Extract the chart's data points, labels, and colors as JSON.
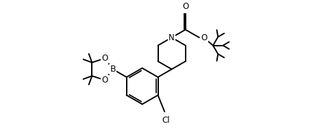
{
  "background_color": "#ffffff",
  "line_color": "#000000",
  "line_width": 1.4,
  "font_size": 8.5,
  "figsize": [
    4.54,
    1.98
  ],
  "dpi": 100,
  "xlim": [
    -1.5,
    9.5
  ],
  "ylim": [
    -2.2,
    3.8
  ]
}
